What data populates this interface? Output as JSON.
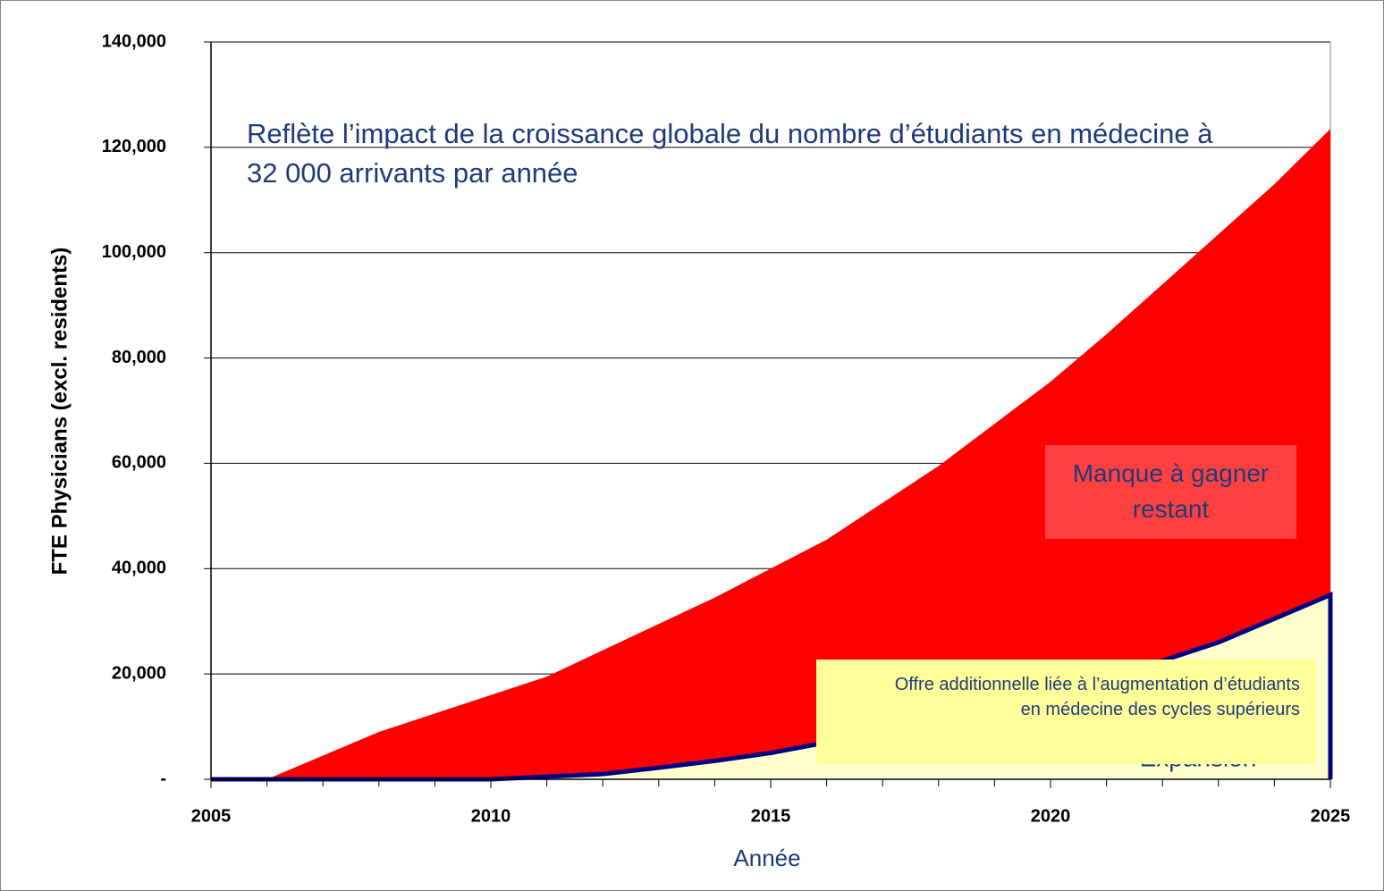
{
  "chart_data": {
    "type": "stacked_area",
    "annotation": "Reflète l’impact de la croissance globale du nombre d’étudiants en médecine à 32 000 arrivants par année",
    "xlabel": "Année",
    "ylabel": "FTE Physicians (excl. residents)",
    "hidden_label": "Expansion",
    "x": [
      2005,
      2006,
      2007,
      2008,
      2009,
      2010,
      2011,
      2012,
      2013,
      2014,
      2015,
      2016,
      2017,
      2018,
      2019,
      2020,
      2021,
      2022,
      2023,
      2024,
      2025
    ],
    "series": [
      {
        "name": "Offre additionnelle liée à l’augmentation d’étudiants en médecine des cycles supérieurs",
        "color": "#ffffcc",
        "edge": "#000080",
        "label_color": "#ffff99",
        "values": [
          0,
          0,
          0,
          0,
          0,
          0,
          500,
          1000,
          2200,
          3500,
          5000,
          7000,
          9000,
          11000,
          13500,
          16000,
          19000,
          22500,
          26000,
          30500,
          35000
        ]
      },
      {
        "name": "Manque à gagner restant",
        "color": "#ff0000",
        "label_color": "#ff4040",
        "values": [
          0,
          0,
          4500,
          9000,
          12500,
          16000,
          19000,
          23500,
          27300,
          31000,
          35000,
          38500,
          43500,
          48500,
          54000,
          59500,
          65500,
          71500,
          77500,
          82500,
          88500
        ]
      }
    ],
    "xlim": [
      2005,
      2025
    ],
    "xticks": [
      2005,
      2010,
      2015,
      2020,
      2025
    ],
    "ylim": [
      0,
      140000
    ],
    "yticks": [
      {
        "value": 0,
        "label": "-"
      },
      {
        "value": 20000,
        "label": "20,000"
      },
      {
        "value": 40000,
        "label": "40,000"
      },
      {
        "value": 60000,
        "label": "60,000"
      },
      {
        "value": 80000,
        "label": "80,000"
      },
      {
        "value": 100000,
        "label": "100,000"
      },
      {
        "value": 120000,
        "label": "120,000"
      },
      {
        "value": 140000,
        "label": "140,000"
      }
    ],
    "grid": true
  }
}
